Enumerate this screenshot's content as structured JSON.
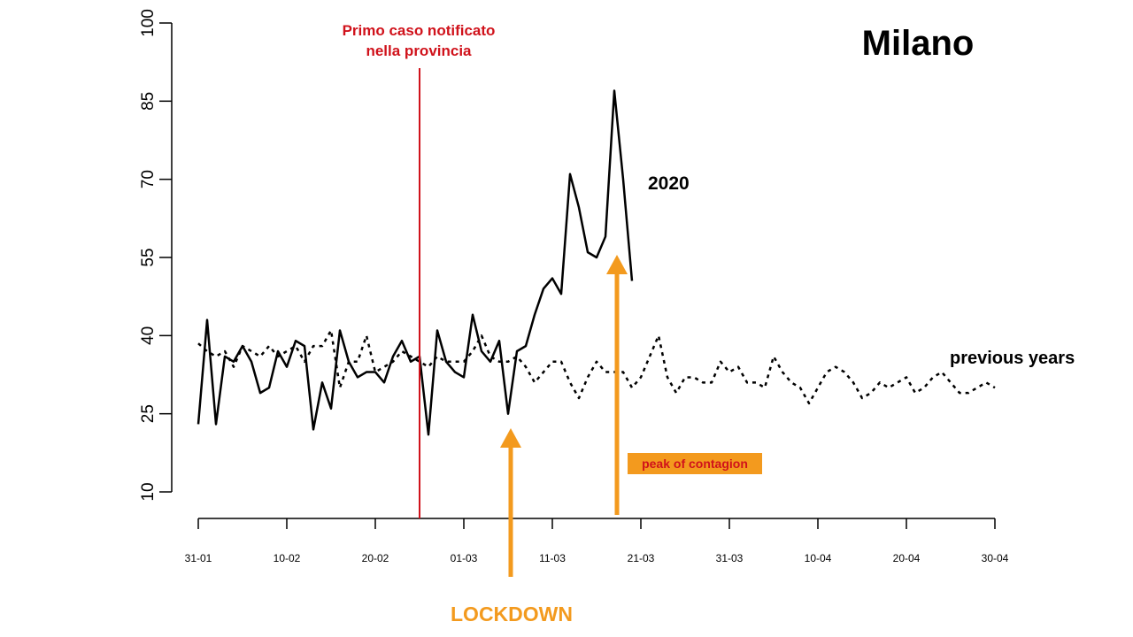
{
  "chart_data": {
    "type": "line",
    "title": "Milano",
    "xlabel": "",
    "ylabel": "",
    "ylim": [
      10,
      100
    ],
    "xlim_days": [
      0,
      90
    ],
    "y_ticks": [
      "10",
      "25",
      "40",
      "55",
      "70",
      "85",
      "100"
    ],
    "x_ticks": [
      "31-01",
      "10-02",
      "20-02",
      "01-03",
      "11-03",
      "21-03",
      "31-03",
      "10-04",
      "20-04",
      "30-04"
    ],
    "series": [
      {
        "name": "2020",
        "style": "solid",
        "color": "#000000",
        "values": [
          23,
          43,
          23,
          36,
          35,
          38,
          35,
          29,
          30,
          37,
          34,
          39,
          38,
          22,
          31,
          26,
          41,
          35,
          32,
          33,
          33,
          31,
          36,
          39,
          35,
          36,
          21,
          41,
          35,
          33,
          32,
          44,
          37,
          35,
          39,
          25,
          37,
          38,
          44,
          49,
          51,
          48,
          71,
          64.6,
          56,
          55,
          59,
          87,
          70,
          50.5
        ]
      },
      {
        "name": "previous years",
        "style": "dashed",
        "color": "#000000",
        "values": [
          38.5,
          37,
          36,
          37,
          34,
          38,
          37,
          36,
          38,
          36,
          37,
          38,
          35,
          38,
          38,
          41,
          30,
          35,
          35,
          40,
          33,
          34,
          35,
          37,
          36,
          35,
          34,
          36,
          35,
          35,
          35,
          37,
          40,
          36,
          35,
          35,
          36,
          34,
          31,
          33,
          35,
          35,
          31,
          28,
          32,
          35,
          33,
          33,
          33,
          30,
          32,
          36,
          40,
          32,
          29,
          32,
          32,
          31,
          31,
          35,
          33,
          34,
          31,
          31,
          30,
          36,
          33,
          31,
          30,
          27,
          30,
          33,
          34,
          33,
          31,
          28,
          29,
          31,
          30,
          31,
          32,
          29,
          30,
          32,
          33,
          31,
          29,
          29,
          30,
          31,
          30
        ]
      }
    ],
    "annotations": {
      "first_case": {
        "line1": "Primo caso notificato",
        "line2": "nella provincia",
        "day": 25,
        "color": "#d0121b"
      },
      "lockdown": {
        "label": "LOCKDOWN",
        "day": 35.3,
        "color": "#f39a1e"
      },
      "peak": {
        "label": "peak of contagion",
        "day": 47.3,
        "color": "#f39a1e",
        "text_color": "#d0121b"
      },
      "series_2020_label": "2020",
      "series_prev_label": "previous years"
    }
  }
}
